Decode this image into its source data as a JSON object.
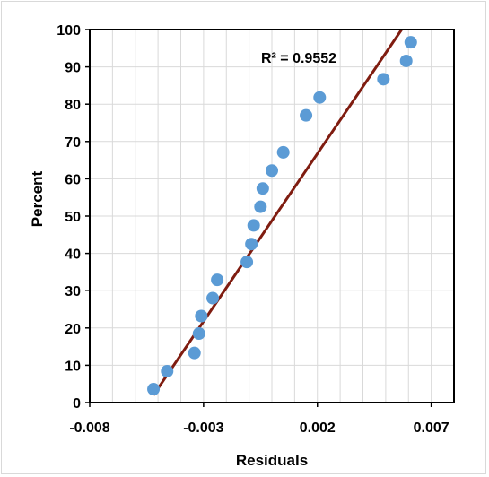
{
  "chart_data": {
    "type": "scatter",
    "title": "",
    "xlabel": "Residuals",
    "ylabel": "Percent",
    "xlim": [
      -0.008,
      0.008
    ],
    "ylim": [
      0,
      100
    ],
    "x_major_ticks": [
      -0.008,
      -0.003,
      0.002,
      0.007
    ],
    "x_tick_labels": [
      "-0.008",
      "-0.003",
      "0.002",
      "0.007"
    ],
    "x_minor_step": 0.001,
    "y_ticks": [
      0,
      10,
      20,
      30,
      40,
      50,
      60,
      70,
      80,
      90,
      100
    ],
    "y_tick_labels": [
      "0",
      "10",
      "20",
      "30",
      "40",
      "50",
      "60",
      "70",
      "80",
      "90",
      "100"
    ],
    "grid": true,
    "legend": "none",
    "series": [
      {
        "color": "#5b9bd5",
        "points": [
          {
            "x": -0.0052,
            "y": 3.6
          },
          {
            "x": -0.0046,
            "y": 8.4
          },
          {
            "x": -0.0034,
            "y": 13.3
          },
          {
            "x": -0.0032,
            "y": 18.5
          },
          {
            "x": -0.0031,
            "y": 23.2
          },
          {
            "x": -0.0026,
            "y": 28.0
          },
          {
            "x": -0.0024,
            "y": 32.9
          },
          {
            "x": -0.0011,
            "y": 37.7
          },
          {
            "x": -0.0009,
            "y": 42.5
          },
          {
            "x": -0.0008,
            "y": 47.5
          },
          {
            "x": -0.0005,
            "y": 52.5
          },
          {
            "x": -0.0004,
            "y": 57.4
          },
          {
            "x": 0.0,
            "y": 62.2
          },
          {
            "x": 0.0005,
            "y": 67.1
          },
          {
            "x": 0.0015,
            "y": 77.0
          },
          {
            "x": 0.0021,
            "y": 81.8
          },
          {
            "x": 0.0049,
            "y": 86.7
          },
          {
            "x": 0.0059,
            "y": 91.6
          },
          {
            "x": 0.0061,
            "y": 96.6
          }
        ]
      }
    ],
    "trendline": {
      "color": "#7f1c10",
      "points": [
        {
          "x": -0.0052,
          "y": 2.0
        },
        {
          "x": 0.0057,
          "y": 100
        }
      ]
    },
    "annotation": "R² = 0.9552"
  }
}
